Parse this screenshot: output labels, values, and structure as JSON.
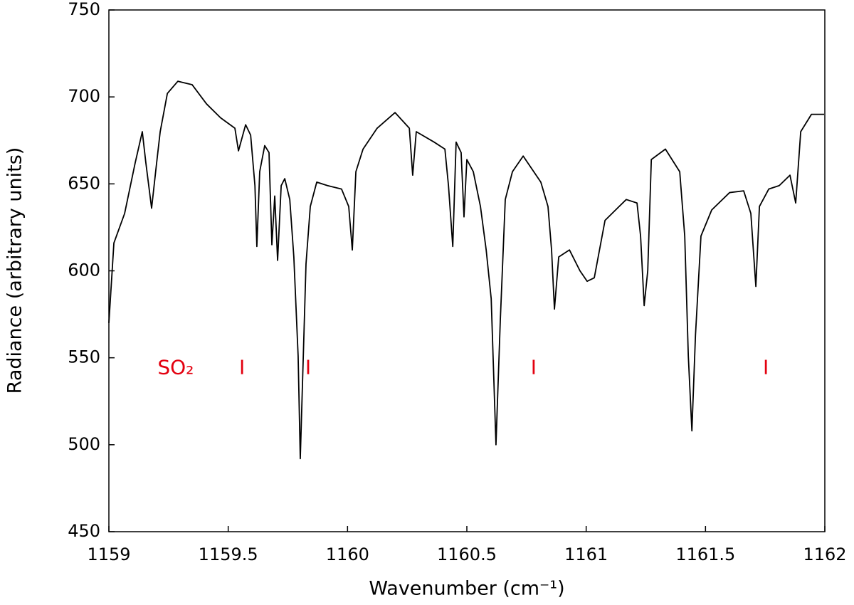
{
  "chart_data": {
    "type": "line",
    "xlabel": "Wavenumber (cm⁻¹)",
    "ylabel": "Radiance (arbitrary units)",
    "color": "#000000",
    "xlim": [
      1159,
      1162
    ],
    "xticks": [
      1159,
      1159.5,
      1160,
      1160.5,
      1161,
      1161.5,
      1162
    ],
    "ylim": [
      450,
      750
    ],
    "yticks": [
      450,
      500,
      550,
      600,
      650,
      700,
      750
    ],
    "grid": false,
    "x": [
      1159.0,
      1159.021,
      1159.066,
      1159.11,
      1159.14,
      1159.155,
      1159.179,
      1159.2,
      1159.215,
      1159.245,
      1159.289,
      1159.349,
      1159.409,
      1159.468,
      1159.528,
      1159.543,
      1159.573,
      1159.594,
      1159.612,
      1159.62,
      1159.632,
      1159.653,
      1159.671,
      1159.683,
      1159.695,
      1159.707,
      1159.722,
      1159.737,
      1159.758,
      1159.775,
      1159.793,
      1159.802,
      1159.811,
      1159.826,
      1159.844,
      1159.871,
      1159.916,
      1159.975,
      1160.005,
      1160.02,
      1160.035,
      1160.065,
      1160.124,
      1160.199,
      1160.259,
      1160.273,
      1160.288,
      1160.363,
      1160.408,
      1160.423,
      1160.441,
      1160.455,
      1160.476,
      1160.488,
      1160.5,
      1160.527,
      1160.557,
      1160.581,
      1160.602,
      1160.622,
      1160.64,
      1160.661,
      1160.691,
      1160.736,
      1160.81,
      1160.84,
      1160.855,
      1160.867,
      1160.885,
      1160.93,
      1160.974,
      1161.004,
      1161.034,
      1161.079,
      1161.138,
      1161.168,
      1161.213,
      1161.228,
      1161.243,
      1161.258,
      1161.273,
      1161.332,
      1161.392,
      1161.413,
      1161.428,
      1161.443,
      1161.458,
      1161.481,
      1161.526,
      1161.601,
      1161.66,
      1161.69,
      1161.711,
      1161.726,
      1161.765,
      1161.809,
      1161.854,
      1161.878,
      1161.899,
      1161.944,
      1161.997
    ],
    "values": [
      570,
      616,
      633,
      662,
      680,
      662,
      636,
      662,
      680,
      702,
      709,
      707,
      696,
      688,
      682,
      669,
      684,
      678,
      649,
      614,
      657,
      672,
      668,
      615,
      643,
      606,
      649,
      653,
      641,
      608,
      551,
      492,
      534,
      604,
      637,
      651,
      649,
      647,
      637,
      612,
      657,
      670,
      682,
      691,
      682,
      655,
      680,
      674,
      670,
      649,
      614,
      674,
      668,
      631,
      664,
      657,
      637,
      612,
      584,
      500,
      571,
      641,
      657,
      666,
      651,
      637,
      612,
      578,
      608,
      612,
      600,
      594,
      596,
      629,
      637,
      641,
      639,
      620,
      580,
      600,
      664,
      670,
      657,
      620,
      551,
      508,
      563,
      620,
      635,
      645,
      646,
      633,
      591,
      637,
      647,
      649,
      655,
      639,
      680,
      690,
      690
    ],
    "annotations": [
      {
        "text": "SO₂",
        "x": 1159.28,
        "y": 544
      },
      {
        "text": "I",
        "x": 1159.558,
        "y": 544
      },
      {
        "text": "I",
        "x": 1159.835,
        "y": 544
      },
      {
        "text": "I",
        "x": 1160.78,
        "y": 544
      },
      {
        "text": "I",
        "x": 1161.753,
        "y": 544
      }
    ]
  }
}
